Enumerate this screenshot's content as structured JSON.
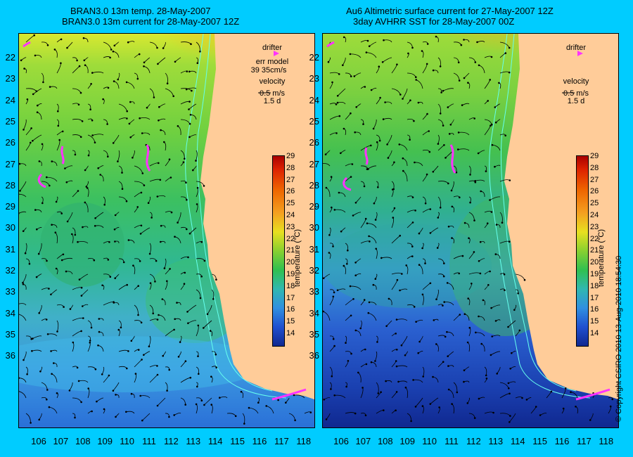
{
  "left_panel": {
    "title_line1": "BRAN3.0 13m temp. 28-May-2007",
    "title_line2": "BRAN3.0 13m current for 28-May-2007 12Z",
    "legend": {
      "drifter_label": "drifter",
      "err_model_label": "err model",
      "err_model_value": "39 35cm/s",
      "velocity_label": "velocity",
      "velocity_scale": "0.5 m/s",
      "velocity_time": "1.5 d"
    }
  },
  "right_panel": {
    "title_line1": "Au6 Altimetric surface current for 27-May-2007 12Z",
    "title_line2": "3day AVHRR SST for 28-May-2007 00Z",
    "legend": {
      "drifter_label": "drifter",
      "velocity_label": "velocity",
      "velocity_scale": "0.5 m/s",
      "velocity_time": "1.5 d"
    }
  },
  "y_ticks": [
    "22",
    "23",
    "24",
    "25",
    "26",
    "27",
    "28",
    "29",
    "30",
    "31",
    "32",
    "33",
    "34",
    "35",
    "36"
  ],
  "x_ticks": [
    "106",
    "107",
    "108",
    "109",
    "110",
    "111",
    "112",
    "113",
    "114",
    "115",
    "116",
    "117",
    "118"
  ],
  "colorbar": {
    "title": "temperature (°C)",
    "ticks": [
      "29",
      "28",
      "27",
      "26",
      "25",
      "24",
      "23",
      "22",
      "21",
      "20",
      "19",
      "18",
      "17",
      "16",
      "15",
      "14"
    ]
  },
  "copyright": "© Copyright CSIRO 2010   13-Aug-2010 18:54:30",
  "colors": {
    "background": "#00ccff",
    "land": "#ffcc99",
    "drifter": "#ff33ff",
    "contour": "#66ffee"
  }
}
